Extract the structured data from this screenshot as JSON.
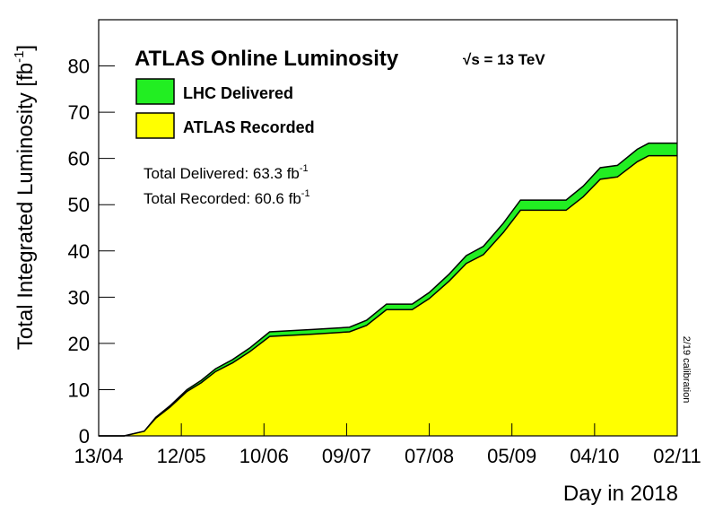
{
  "chart_data": {
    "type": "area",
    "title": "ATLAS Online Luminosity",
    "energy": "√s = 13 TeV",
    "y_label": "Total Integrated Luminosity [fb",
    "y_label_sup": "-1",
    "y_label_end": "]",
    "x_label": "Day in 2018",
    "annotations": [
      {
        "text": "Total Delivered: 63.3 fb",
        "sup": "-1"
      },
      {
        "text": "Total Recorded: 60.6 fb",
        "sup": "-1"
      }
    ],
    "note": "2/19 calibration",
    "x": [
      0,
      9,
      16,
      20,
      25,
      31,
      36,
      41,
      47,
      53,
      60,
      75,
      88,
      94,
      101,
      110,
      116,
      123,
      129,
      135,
      142,
      148,
      164,
      170,
      176,
      182,
      189,
      193,
      203
    ],
    "series": [
      {
        "name": "LHC Delivered",
        "color": "#22ee22",
        "values": [
          0,
          0,
          1,
          4,
          6.5,
          10,
          12,
          14.5,
          16.5,
          19,
          22.5,
          23,
          23.5,
          25,
          28.5,
          28.5,
          31,
          35,
          39,
          41,
          46,
          51,
          51,
          54,
          58,
          58.5,
          62,
          63.3,
          63.3
        ]
      },
      {
        "name": "ATLAS Recorded",
        "color": "#ffff00",
        "values": [
          0,
          0,
          1,
          3.8,
          6.2,
          9.6,
          11.5,
          13.9,
          15.8,
          18.2,
          21.5,
          22,
          22.5,
          23.9,
          27.3,
          27.3,
          29.7,
          33.5,
          37.3,
          39.2,
          44,
          48.8,
          48.8,
          51.7,
          55.5,
          56,
          59.3,
          60.6,
          60.6
        ]
      }
    ],
    "xlim": [
      0,
      203
    ],
    "xticks": [
      {
        "value": 0,
        "label": "13/04"
      },
      {
        "value": 29,
        "label": "12/05"
      },
      {
        "value": 58,
        "label": "10/06"
      },
      {
        "value": 87,
        "label": "09/07"
      },
      {
        "value": 116,
        "label": "07/08"
      },
      {
        "value": 145,
        "label": "05/09"
      },
      {
        "value": 174,
        "label": "04/10"
      },
      {
        "value": 203,
        "label": "02/11"
      }
    ],
    "ylim": [
      0,
      90
    ],
    "yticks": [
      0,
      10,
      20,
      30,
      40,
      50,
      60,
      70,
      80
    ],
    "grid": false
  }
}
